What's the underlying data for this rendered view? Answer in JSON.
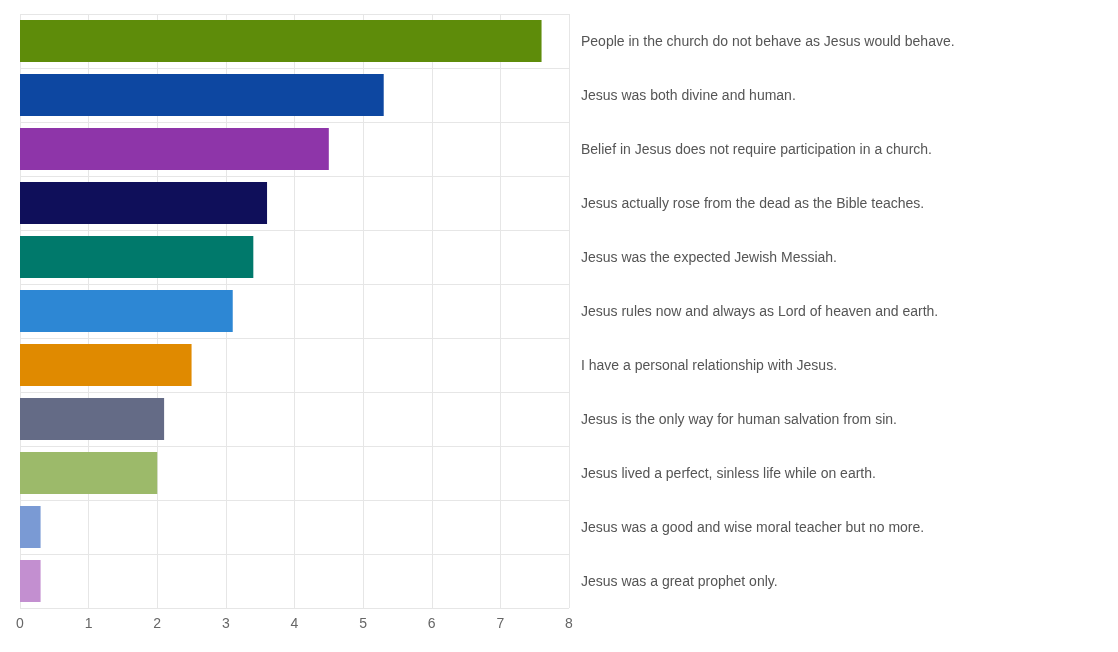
{
  "chart_data": {
    "type": "bar",
    "orientation": "horizontal",
    "categories": [
      "People in the church do not behave as Jesus would behave.",
      "Jesus was both divine and human.",
      "Belief in Jesus does not require participation in a church.",
      "Jesus actually rose from the dead as the Bible teaches.",
      "Jesus was the expected Jewish Messiah.",
      "Jesus rules now and always as Lord of heaven and earth.",
      "I have a personal relationship with Jesus.",
      "Jesus is the only way for human salvation from sin.",
      "Jesus lived a perfect, sinless life while on earth.",
      "Jesus was a good and wise moral teacher but no more.",
      "Jesus was a great prophet only."
    ],
    "values": [
      7.6,
      5.3,
      4.5,
      3.6,
      3.4,
      3.1,
      2.5,
      2.1,
      2.0,
      0.3,
      0.3
    ],
    "colors": [
      "#5e8c0a",
      "#0d47a1",
      "#8e35a9",
      "#0f0f5a",
      "#00796b",
      "#2d87d4",
      "#e08a00",
      "#646b86",
      "#9cba6a",
      "#7a9ad4",
      "#c38fd0"
    ],
    "xlim": [
      0,
      8
    ],
    "xticks": [
      0,
      1,
      2,
      3,
      4,
      5,
      6,
      7,
      8
    ],
    "grid": true
  }
}
